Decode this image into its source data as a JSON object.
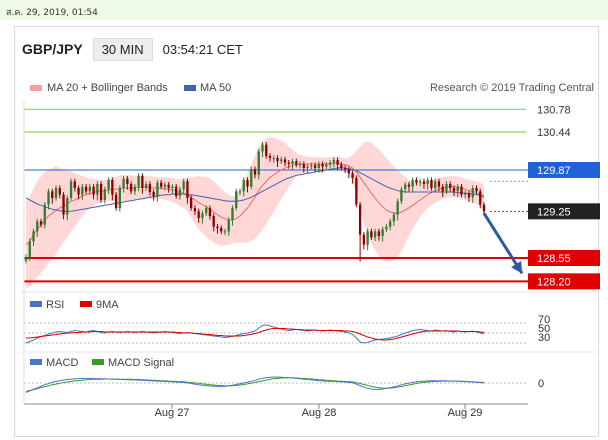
{
  "topbar": {
    "datetime": "ส.ค. 29, 2019, 01:54"
  },
  "header": {
    "symbol": "GBP/JPY",
    "timeframe": "30 MIN",
    "time": "03:54:21 CET"
  },
  "legend": {
    "bb_label": "MA 20 + Bollinger Bands",
    "ma50_label": "MA 50",
    "credit": "Research © 2019 Trading Central"
  },
  "colors": {
    "up": "#2e7d32",
    "down": "#8e0000",
    "bollinger": "#ffd0d0",
    "ma20": "#f26a6a",
    "ma50": "#3e64ad",
    "support": "#e00000",
    "pivot": "#1f62d6",
    "resistance": "#8fd15c",
    "rsi": "#4a76c6",
    "rsi_ma": "#e00000",
    "macd": "#4a76c6",
    "macd_signal": "#3a9a2a"
  },
  "chart_data": [
    {
      "type": "candlestick",
      "x_labels": [
        "Aug 27",
        "Aug 28",
        "Aug 29"
      ],
      "ylim": [
        128.1,
        130.95
      ],
      "levels": [
        {
          "value": 130.78,
          "label": "130.78",
          "kind": "resistance"
        },
        {
          "value": 130.44,
          "label": "130.44",
          "kind": "resistance"
        },
        {
          "value": 129.87,
          "label": "129.87",
          "kind": "pivot"
        },
        {
          "value": 129.25,
          "label": "129.25",
          "kind": "current"
        },
        {
          "value": 128.55,
          "label": "128.55",
          "kind": "support"
        },
        {
          "value": 128.2,
          "label": "128.20",
          "kind": "support"
        }
      ],
      "close": [
        128.56,
        128.8,
        128.95,
        129.1,
        129.05,
        129.35,
        129.55,
        129.45,
        129.6,
        129.5,
        129.2,
        129.45,
        129.7,
        129.6,
        129.5,
        129.62,
        129.55,
        129.62,
        129.5,
        129.66,
        129.42,
        129.58,
        129.72,
        129.5,
        129.3,
        129.6,
        129.74,
        129.66,
        129.55,
        129.62,
        129.78,
        129.6,
        129.66,
        129.54,
        129.48,
        129.68,
        129.62,
        129.65,
        129.6,
        129.62,
        129.48,
        129.58,
        129.7,
        129.45,
        129.3,
        129.25,
        129.15,
        129.22,
        129.3,
        129.18,
        129.02,
        129.0,
        128.95,
        128.95,
        129.12,
        129.3,
        129.55,
        129.55,
        129.72,
        129.62,
        129.88,
        129.8,
        130.15,
        130.25,
        130.08,
        130.05,
        130.05,
        130.0,
        130.03,
        129.98,
        129.96,
        130.0,
        129.95,
        129.96,
        129.9,
        129.92,
        129.94,
        129.9,
        129.96,
        129.92,
        129.95,
        129.98,
        130.02,
        129.95,
        129.9,
        129.88,
        129.82,
        129.75,
        129.35,
        128.9,
        128.75,
        128.95,
        128.86,
        128.95,
        128.88,
        128.98,
        129.02,
        129.1,
        129.2,
        129.4,
        129.58,
        129.65,
        129.62,
        129.72,
        129.68,
        129.7,
        129.66,
        129.72,
        129.6,
        129.7,
        129.62,
        129.55,
        129.66,
        129.6,
        129.55,
        129.62,
        129.5,
        129.52,
        129.46,
        129.6,
        129.55,
        129.35,
        129.25
      ],
      "ma20": [
        128.75,
        128.8,
        128.9,
        128.98,
        129.05,
        129.12,
        129.18,
        129.22,
        129.27,
        129.3,
        129.33,
        129.36,
        129.4,
        129.42,
        129.45,
        129.48,
        129.5,
        129.52,
        129.53,
        129.55,
        129.55,
        129.56,
        129.57,
        129.58,
        129.58,
        129.59,
        129.6,
        129.6,
        129.6,
        129.6,
        129.61,
        129.61,
        129.61,
        129.61,
        129.6,
        129.6,
        129.6,
        129.59,
        129.58,
        129.57,
        129.55,
        129.53,
        129.52,
        129.5,
        129.46,
        129.42,
        129.38,
        129.35,
        129.32,
        129.28,
        129.24,
        129.2,
        129.16,
        129.14,
        129.12,
        129.12,
        129.14,
        129.18,
        129.24,
        129.3,
        129.38,
        129.46,
        129.56,
        129.64,
        129.7,
        129.76,
        129.8,
        129.84,
        129.87,
        129.9,
        129.92,
        129.94,
        129.95,
        129.96,
        129.96,
        129.96,
        129.96,
        129.96,
        129.96,
        129.96,
        129.96,
        129.96,
        129.97,
        129.97,
        129.96,
        129.95,
        129.93,
        129.9,
        129.84,
        129.76,
        129.68,
        129.6,
        129.52,
        129.45,
        129.38,
        129.32,
        129.27,
        129.24,
        129.22,
        129.22,
        129.24,
        129.27,
        129.3,
        129.34,
        129.38,
        129.42,
        129.46,
        129.5,
        129.53,
        129.56,
        129.58,
        129.6,
        129.61,
        129.62,
        129.62,
        129.61,
        129.6,
        129.58,
        129.56,
        129.55,
        129.53,
        129.5,
        129.45
      ],
      "ma50": [
        129.45,
        129.42,
        129.39,
        129.36,
        129.34,
        129.32,
        129.3,
        129.28,
        129.27,
        129.26,
        129.25,
        129.25,
        129.25,
        129.26,
        129.27,
        129.28,
        129.29,
        129.3,
        129.31,
        129.32,
        129.33,
        129.34,
        129.35,
        129.36,
        129.37,
        129.38,
        129.39,
        129.4,
        129.41,
        129.42,
        129.43,
        129.44,
        129.45,
        129.46,
        129.47,
        129.48,
        129.49,
        129.5,
        129.5,
        129.51,
        129.51,
        129.51,
        129.51,
        129.5,
        129.5,
        129.49,
        129.48,
        129.47,
        129.46,
        129.45,
        129.44,
        129.43,
        129.42,
        129.41,
        129.4,
        129.4,
        129.4,
        129.41,
        129.42,
        129.44,
        129.46,
        129.49,
        129.52,
        129.55,
        129.58,
        129.61,
        129.64,
        129.67,
        129.7,
        129.73,
        129.75,
        129.77,
        129.79,
        129.8,
        129.81,
        129.82,
        129.83,
        129.84,
        129.85,
        129.86,
        129.87,
        129.88,
        129.89,
        129.9,
        129.9,
        129.9,
        129.89,
        129.88,
        129.86,
        129.83,
        129.8,
        129.77,
        129.74,
        129.71,
        129.68,
        129.65,
        129.62,
        129.6,
        129.58,
        129.56,
        129.55,
        129.54,
        129.54,
        129.54,
        129.54,
        129.54,
        129.54,
        129.54,
        129.54,
        129.54,
        129.54,
        129.54,
        129.54,
        129.54,
        129.54,
        129.53,
        129.53,
        129.52,
        129.52,
        129.51,
        129.5,
        129.49,
        129.48
      ],
      "bb_width": [
        0.65,
        0.68,
        0.7,
        0.72,
        0.73,
        0.72,
        0.7,
        0.68,
        0.66,
        0.6,
        0.55,
        0.5,
        0.45,
        0.4,
        0.35,
        0.3,
        0.26,
        0.22,
        0.2,
        0.18,
        0.17,
        0.16,
        0.16,
        0.17,
        0.19,
        0.2,
        0.2,
        0.2,
        0.19,
        0.18,
        0.18,
        0.18,
        0.17,
        0.17,
        0.17,
        0.16,
        0.16,
        0.17,
        0.17,
        0.18,
        0.19,
        0.2,
        0.22,
        0.25,
        0.3,
        0.35,
        0.4,
        0.42,
        0.45,
        0.46,
        0.46,
        0.45,
        0.43,
        0.4,
        0.38,
        0.35,
        0.36,
        0.4,
        0.46,
        0.52,
        0.58,
        0.62,
        0.66,
        0.66,
        0.64,
        0.6,
        0.56,
        0.5,
        0.44,
        0.38,
        0.3,
        0.24,
        0.18,
        0.14,
        0.12,
        0.11,
        0.1,
        0.1,
        0.1,
        0.1,
        0.1,
        0.1,
        0.1,
        0.1,
        0.1,
        0.1,
        0.12,
        0.2,
        0.32,
        0.46,
        0.6,
        0.7,
        0.76,
        0.78,
        0.8,
        0.8,
        0.78,
        0.74,
        0.7,
        0.65,
        0.58,
        0.5,
        0.42,
        0.35,
        0.3,
        0.26,
        0.22,
        0.2,
        0.19,
        0.18,
        0.17,
        0.16,
        0.16,
        0.16,
        0.16,
        0.16,
        0.16,
        0.16,
        0.16,
        0.16,
        0.17,
        0.18,
        0.2
      ],
      "forecast_arrow": {
        "from": 129.25,
        "to": 128.2
      }
    },
    {
      "type": "line",
      "name": "RSI",
      "legend": [
        "RSI",
        "9MA"
      ],
      "levels": [
        {
          "value": 70,
          "label": "70"
        },
        {
          "value": 50,
          "label": "50"
        },
        {
          "value": 30,
          "label": "30"
        }
      ],
      "ylim": [
        20,
        80
      ],
      "rsi": [
        30,
        33,
        36,
        40,
        43,
        45,
        48,
        50,
        52,
        53,
        52,
        51,
        53,
        55,
        54,
        53,
        52,
        54,
        55,
        53,
        51,
        50,
        52,
        53,
        52,
        51,
        52,
        53,
        52,
        51,
        52,
        53,
        52,
        51,
        50,
        51,
        52,
        53,
        52,
        51,
        50,
        49,
        50,
        51,
        50,
        49,
        48,
        47,
        46,
        45,
        44,
        43,
        42,
        41,
        42,
        43,
        45,
        47,
        49,
        50,
        52,
        54,
        60,
        65,
        66,
        64,
        62,
        60,
        58,
        56,
        55,
        56,
        57,
        56,
        55,
        54,
        55,
        56,
        55,
        54,
        55,
        56,
        55,
        54,
        53,
        52,
        50,
        47,
        40,
        32,
        30,
        31,
        34,
        36,
        37,
        38,
        39,
        40,
        42,
        44,
        47,
        50,
        52,
        55,
        56,
        57,
        56,
        55,
        54,
        56,
        55,
        54,
        55,
        53,
        52,
        54,
        53,
        52,
        53,
        54,
        52,
        50,
        48
      ],
      "rsi_ma": [
        40,
        40,
        41,
        42,
        43,
        44,
        45,
        46,
        47,
        48,
        49,
        50,
        50,
        51,
        51,
        52,
        52,
        52,
        53,
        53,
        53,
        52,
        52,
        52,
        52,
        52,
        52,
        52,
        52,
        52,
        52,
        52,
        52,
        52,
        52,
        52,
        52,
        52,
        52,
        52,
        51,
        51,
        50,
        50,
        50,
        49,
        49,
        48,
        47,
        47,
        46,
        45,
        45,
        44,
        44,
        44,
        44,
        44,
        45,
        46,
        47,
        49,
        51,
        54,
        56,
        58,
        59,
        59,
        59,
        59,
        58,
        58,
        57,
        57,
        56,
        56,
        56,
        56,
        55,
        55,
        55,
        55,
        55,
        55,
        55,
        54,
        54,
        53,
        51,
        48,
        45,
        42,
        40,
        38,
        37,
        36,
        36,
        37,
        38,
        40,
        42,
        44,
        46,
        48,
        50,
        52,
        53,
        54,
        54,
        54,
        54,
        54,
        54,
        54,
        54,
        54,
        53,
        53,
        53,
        53,
        53,
        52,
        51
      ]
    },
    {
      "type": "line",
      "name": "MACD",
      "legend": [
        "MACD",
        "MACD Signal"
      ],
      "levels": [
        {
          "value": 0,
          "label": "0"
        }
      ],
      "ylim": [
        -0.9,
        1.0
      ],
      "macd": [
        -0.5,
        -0.42,
        -0.34,
        -0.26,
        -0.18,
        -0.1,
        -0.03,
        0.03,
        0.08,
        0.12,
        0.15,
        0.18,
        0.2,
        0.22,
        0.23,
        0.24,
        0.24,
        0.24,
        0.23,
        0.22,
        0.22,
        0.22,
        0.21,
        0.2,
        0.19,
        0.18,
        0.18,
        0.17,
        0.16,
        0.16,
        0.15,
        0.14,
        0.13,
        0.12,
        0.11,
        0.1,
        0.09,
        0.08,
        0.07,
        0.06,
        0.05,
        0.04,
        0.02,
        0.0,
        -0.03,
        -0.06,
        -0.09,
        -0.12,
        -0.14,
        -0.16,
        -0.17,
        -0.18,
        -0.18,
        -0.17,
        -0.15,
        -0.12,
        -0.08,
        -0.04,
        0.0,
        0.04,
        0.09,
        0.14,
        0.2,
        0.25,
        0.28,
        0.3,
        0.31,
        0.31,
        0.3,
        0.29,
        0.27,
        0.26,
        0.24,
        0.22,
        0.2,
        0.18,
        0.16,
        0.14,
        0.12,
        0.11,
        0.1,
        0.09,
        0.08,
        0.07,
        0.06,
        0.05,
        0.03,
        0.0,
        -0.06,
        -0.14,
        -0.22,
        -0.28,
        -0.32,
        -0.34,
        -0.34,
        -0.32,
        -0.29,
        -0.25,
        -0.2,
        -0.15,
        -0.1,
        -0.05,
        -0.01,
        0.03,
        0.06,
        0.08,
        0.1,
        0.11,
        0.12,
        0.12,
        0.12,
        0.12,
        0.11,
        0.1,
        0.1,
        0.09,
        0.08,
        0.07,
        0.06,
        0.05,
        0.04,
        0.02,
        0.0
      ],
      "macd_signal": [
        -0.45,
        -0.4,
        -0.35,
        -0.3,
        -0.25,
        -0.2,
        -0.15,
        -0.1,
        -0.06,
        -0.02,
        0.02,
        0.05,
        0.08,
        0.11,
        0.13,
        0.15,
        0.17,
        0.18,
        0.19,
        0.2,
        0.2,
        0.21,
        0.21,
        0.21,
        0.21,
        0.2,
        0.2,
        0.19,
        0.19,
        0.18,
        0.18,
        0.17,
        0.16,
        0.15,
        0.14,
        0.13,
        0.12,
        0.11,
        0.1,
        0.09,
        0.08,
        0.07,
        0.06,
        0.04,
        0.02,
        0.0,
        -0.02,
        -0.05,
        -0.07,
        -0.09,
        -0.11,
        -0.13,
        -0.14,
        -0.15,
        -0.15,
        -0.15,
        -0.13,
        -0.11,
        -0.08,
        -0.05,
        -0.01,
        0.03,
        0.07,
        0.11,
        0.15,
        0.19,
        0.22,
        0.24,
        0.26,
        0.27,
        0.27,
        0.27,
        0.26,
        0.25,
        0.24,
        0.22,
        0.21,
        0.19,
        0.17,
        0.16,
        0.14,
        0.13,
        0.12,
        0.1,
        0.09,
        0.08,
        0.07,
        0.05,
        0.02,
        -0.03,
        -0.08,
        -0.13,
        -0.18,
        -0.22,
        -0.25,
        -0.27,
        -0.28,
        -0.27,
        -0.25,
        -0.22,
        -0.19,
        -0.15,
        -0.11,
        -0.07,
        -0.03,
        0.0,
        0.03,
        0.05,
        0.07,
        0.08,
        0.09,
        0.1,
        0.1,
        0.1,
        0.1,
        0.1,
        0.09,
        0.08,
        0.07,
        0.06,
        0.05,
        0.04,
        0.03
      ]
    }
  ]
}
